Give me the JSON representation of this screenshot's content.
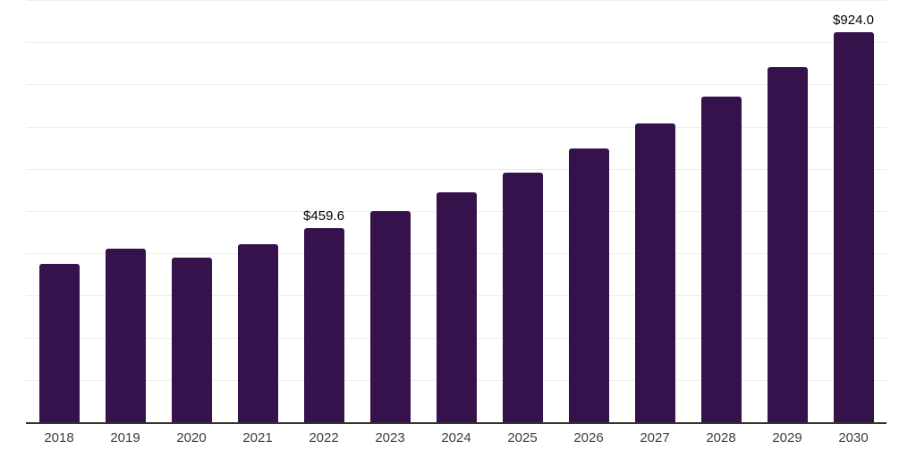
{
  "chart_data": {
    "type": "bar",
    "title": "",
    "xlabel": "",
    "ylabel": "",
    "categories": [
      "2018",
      "2019",
      "2020",
      "2021",
      "2022",
      "2023",
      "2024",
      "2025",
      "2026",
      "2027",
      "2028",
      "2029",
      "2030"
    ],
    "values": [
      376,
      411,
      390,
      421,
      459.6,
      499,
      545,
      592,
      649,
      707,
      772,
      842,
      924
    ],
    "data_labels": [
      "",
      "",
      "",
      "",
      "$459.6",
      "",
      "",
      "",
      "",
      "",
      "",
      "",
      "$924.0"
    ],
    "ylim": [
      0,
      1000
    ],
    "grid": true,
    "grid_interval": 100,
    "legend_position": "none",
    "colors": {
      "bar": "#35124B",
      "gridline": "#ededed",
      "axis_line": "#333333",
      "tick_label": "#3c3c3c",
      "data_label": "#000000",
      "background": "#ffffff"
    }
  }
}
